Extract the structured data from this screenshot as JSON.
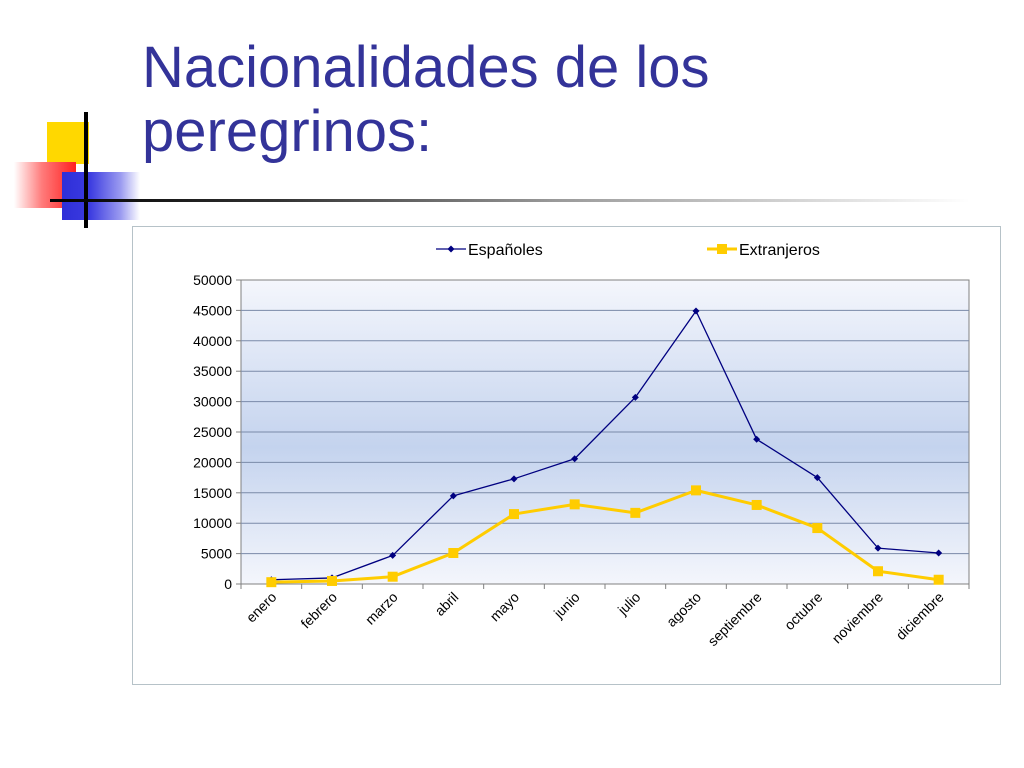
{
  "title": "Nacionalidades de los peregrinos:",
  "colors": {
    "title": "#333399",
    "series_espanoles": "#000080",
    "series_extranjeros": "#ffcc00",
    "plot_top": "#f4f6fc",
    "plot_mid": "#c4d3ee"
  },
  "chart_data": {
    "type": "line",
    "title": "",
    "xlabel": "",
    "ylabel": "",
    "categories": [
      "enero",
      "febrero",
      "marzo",
      "abril",
      "mayo",
      "junio",
      "julio",
      "agosto",
      "septiembre",
      "octubre",
      "noviembre",
      "diciembre"
    ],
    "series": [
      {
        "name": "Españoles",
        "color": "#000080",
        "marker": "diamond",
        "values": [
          700,
          1000,
          4700,
          14500,
          17300,
          20600,
          30700,
          44900,
          23800,
          17500,
          5900,
          5100
        ]
      },
      {
        "name": "Extranjeros",
        "color": "#ffcc00",
        "marker": "square",
        "values": [
          300,
          500,
          1200,
          5100,
          11500,
          13100,
          11700,
          15400,
          13000,
          9200,
          2100,
          700
        ]
      }
    ],
    "ylim": [
      0,
      50000
    ],
    "yticks": [
      0,
      5000,
      10000,
      15000,
      20000,
      25000,
      30000,
      35000,
      40000,
      45000,
      50000
    ],
    "grid": true,
    "legend_position": "top"
  }
}
